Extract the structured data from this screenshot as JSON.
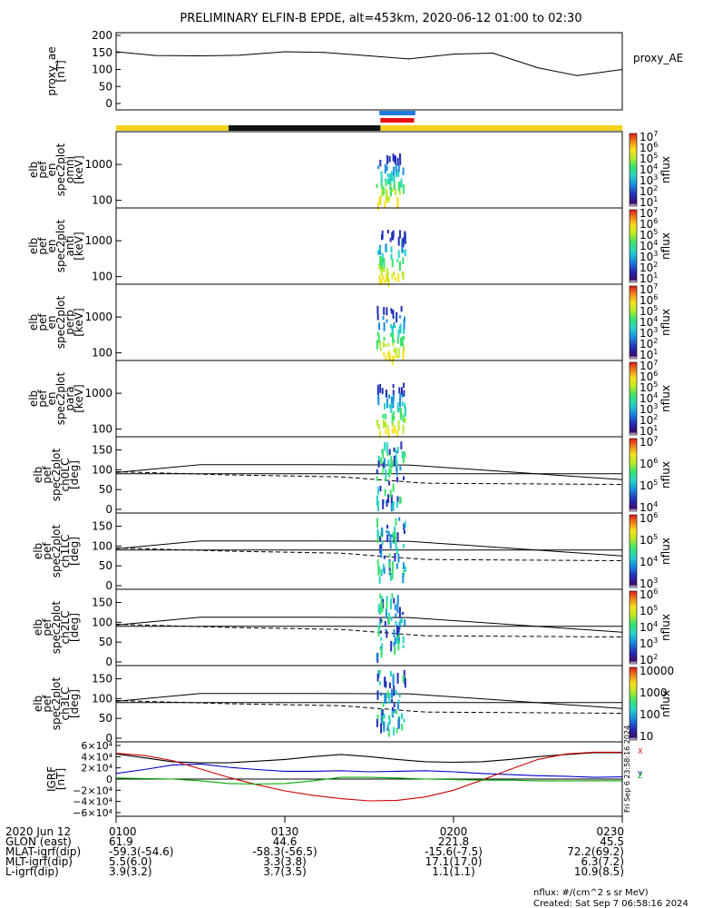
{
  "title": "PRELIMINARY ELFIN-B EPDE, alt=453km, 2020-06-12 01:00 to 02:30",
  "chart_data": [
    {
      "type": "line",
      "panel": "proxy_ae",
      "ylabel": [
        "proxy_ae",
        "[nT]"
      ],
      "yticks": [
        "200",
        "150",
        "100",
        "50",
        "0"
      ],
      "ylim": [
        0,
        200
      ],
      "legend": "proxy_AE",
      "x_min": [
        0,
        7,
        15,
        22,
        30,
        37,
        45,
        52,
        60,
        67,
        75,
        82,
        90
      ],
      "values": [
        152,
        141,
        140,
        142,
        152,
        150,
        140,
        131,
        145,
        148,
        105,
        82,
        100
      ]
    },
    {
      "type": "heatmap",
      "panel": "omni",
      "ylabel": [
        "elb",
        "pef",
        "en",
        "spec2plot",
        "omni",
        "[keV]"
      ],
      "yticks": [
        "1000",
        "100"
      ],
      "cbar_ticks": [
        "10^7",
        "10^6",
        "10^5",
        "10^4",
        "10^3",
        "10^2",
        "10^1"
      ],
      "cbar_label": "nflux"
    },
    {
      "type": "heatmap",
      "panel": "anti",
      "ylabel": [
        "elb",
        "pef",
        "en",
        "spec2plot",
        "anti",
        "[keV]"
      ],
      "yticks": [
        "1000",
        "100"
      ],
      "cbar_ticks": [
        "10^7",
        "10^6",
        "10^5",
        "10^4",
        "10^3",
        "10^2",
        "10^1"
      ],
      "cbar_label": "nflux"
    },
    {
      "type": "heatmap",
      "panel": "perp",
      "ylabel": [
        "elb",
        "pef",
        "en",
        "spec2plot",
        "perp",
        "[keV]"
      ],
      "yticks": [
        "1000",
        "100"
      ],
      "cbar_ticks": [
        "10^7",
        "10^6",
        "10^5",
        "10^4",
        "10^3",
        "10^2",
        "10^1"
      ],
      "cbar_label": "nflux"
    },
    {
      "type": "heatmap",
      "panel": "para",
      "ylabel": [
        "elb",
        "pef",
        "en",
        "spec2plot",
        "para",
        "[keV]"
      ],
      "yticks": [
        "1000",
        "100"
      ],
      "cbar_ticks": [
        "10^7",
        "10^6",
        "10^5",
        "10^4",
        "10^3",
        "10^2",
        "10^1"
      ],
      "cbar_label": "nflux"
    },
    {
      "type": "heatmap",
      "panel": "ch0LC",
      "ylabel": [
        "elb",
        "pef",
        "spec2plot",
        "ch0LC",
        "[deg]"
      ],
      "yticks": [
        "150",
        "100",
        "50",
        "0"
      ],
      "cbar_ticks": [
        "10^7",
        "10^6",
        "10^5",
        "10^4"
      ],
      "cbar_label": "nflux"
    },
    {
      "type": "heatmap",
      "panel": "ch1LC",
      "ylabel": [
        "elb",
        "pef",
        "spec2plot",
        "ch1LC",
        "[deg]"
      ],
      "yticks": [
        "150",
        "100",
        "50",
        "0"
      ],
      "cbar_ticks": [
        "10^6",
        "10^5",
        "10^4",
        "10^3"
      ],
      "cbar_label": "nflux"
    },
    {
      "type": "heatmap",
      "panel": "ch2LC",
      "ylabel": [
        "elb",
        "pef",
        "spec2plot",
        "ch2LC",
        "[deg]"
      ],
      "yticks": [
        "150",
        "100",
        "50",
        "0"
      ],
      "cbar_ticks": [
        "10^6",
        "10^5",
        "10^4",
        "10^3",
        "10^2"
      ],
      "cbar_label": "nflux"
    },
    {
      "type": "heatmap",
      "panel": "ch3LC",
      "ylabel": [
        "elb",
        "pef",
        "spec2plot",
        "ch3LC",
        "[deg]"
      ],
      "yticks": [
        "150",
        "100",
        "50",
        "0"
      ],
      "cbar_ticks": [
        "10000",
        "1000",
        "100",
        "10"
      ],
      "cbar_label": "nflux"
    },
    {
      "type": "line",
      "panel": "IGRF",
      "ylabel": [
        "IGRF",
        "[nT]"
      ],
      "yticks": [
        "6×10⁴",
        "4×10⁴",
        "2×10⁴",
        "0",
        "−2×10⁴",
        "−4×10⁴",
        "−6×10⁴"
      ],
      "ylim": [
        -60000,
        60000
      ],
      "legend_letters": [
        "X",
        "Y",
        "Z"
      ],
      "side_note": "Fri Sep 6 23:58:16 2024",
      "x_min": [
        0,
        5,
        10,
        15,
        20,
        25,
        30,
        35,
        40,
        45,
        50,
        55,
        60,
        65,
        70,
        75,
        80,
        85,
        90
      ],
      "series": [
        {
          "name": "Bx",
          "color": "#000000",
          "values": [
            45000,
            38000,
            31000,
            29000,
            29000,
            32000,
            35000,
            40000,
            44000,
            40000,
            35000,
            31000,
            30000,
            31000,
            35000,
            40000,
            44000,
            47000,
            47000
          ]
        },
        {
          "name": "By",
          "color": "#0000cc",
          "values": [
            10000,
            17000,
            25000,
            27000,
            21000,
            17000,
            14000,
            14000,
            15000,
            13000,
            14000,
            15000,
            13000,
            10000,
            8000,
            6000,
            5000,
            3000,
            4000
          ]
        },
        {
          "name": "Bz",
          "color": "#cc0000",
          "values": [
            46000,
            42000,
            33000,
            18000,
            3000,
            -10000,
            -21000,
            -29000,
            -35000,
            -39000,
            -38000,
            -32000,
            -20000,
            -2000,
            17000,
            35000,
            45000,
            48000,
            48000
          ]
        },
        {
          "name": "Bg",
          "color": "#00aa00",
          "values": [
            2000,
            1000,
            0,
            -3000,
            -8000,
            -9000,
            -8000,
            -3000,
            3000,
            3000,
            2000,
            0,
            -1000,
            -2000,
            -2000,
            -3000,
            -3000,
            -3000,
            -3000
          ]
        }
      ]
    }
  ],
  "orbit_bar": {
    "segments_min": [
      0,
      20,
      47,
      90
    ],
    "colors": [
      "#f2d21e",
      "#111111",
      "#f2d21e"
    ]
  },
  "science_zone": {
    "start_min": 47,
    "end_min": 53,
    "colors": [
      "#e81010",
      "#1e7be0"
    ]
  },
  "xaxis": {
    "rows": [
      {
        "label": "2020 Jun 12",
        "values": [
          "0100",
          "0130",
          "0200",
          "0230"
        ]
      },
      {
        "label": "GLON (east)",
        "values": [
          "61.9",
          "44.6",
          "221.8",
          "45.5"
        ]
      },
      {
        "label": "MLAT-igrf(dip)",
        "values": [
          "-59.3(-54.6)",
          "-58.3(-56.5)",
          "-15.6(-7.5)",
          "72.2(69.2)"
        ]
      },
      {
        "label": "MLT-igrf(dip)",
        "values": [
          "5.5(6.0)",
          "3.3(3.8)",
          "17.1(17.0)",
          "6.3(7.2)"
        ]
      },
      {
        "label": "L-igrf(dip)",
        "values": [
          "3.9(3.2)",
          "3.7(3.5)",
          "1.1(1.1)",
          "10.9(8.5)"
        ]
      }
    ]
  },
  "footer": {
    "units": "nflux: #/(cm^2 s sr MeV)",
    "created": "Created: Sat Sep  7 06:58:16 2024"
  }
}
